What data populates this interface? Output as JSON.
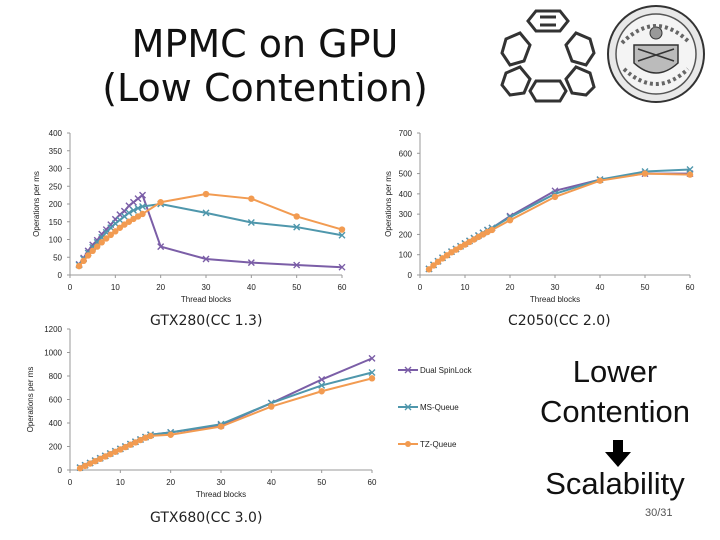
{
  "slide": {
    "title_line1": "MPMC on GPU",
    "title_line2": "(Low Contention)",
    "lower_line1": "Lower",
    "lower_line2": "Contention",
    "scalability": "Scalability",
    "page_number": "30/31"
  },
  "colors": {
    "dual_spinlock": "#7b5ea7",
    "ms_queue": "#4f97ac",
    "tz_queue": "#f29b51",
    "axis": "#999999"
  },
  "chart_data": [
    {
      "id": "gtx280",
      "type": "line",
      "caption": "GTX280(CC 1.3)",
      "xlabel": "Thread blocks",
      "ylabel": "Operations per ms",
      "xlim": [
        0,
        60
      ],
      "ylim": [
        0,
        400
      ],
      "xticks": [
        "0",
        "10",
        "20",
        "30",
        "40",
        "50",
        "60"
      ],
      "yticks": [
        "0",
        "50",
        "100",
        "150",
        "200",
        "250",
        "300",
        "350",
        "400"
      ],
      "series": [
        {
          "name": "Dual SpinLock",
          "marker": "x",
          "x": [
            2,
            3,
            4,
            5,
            6,
            7,
            8,
            9,
            10,
            11,
            12,
            13,
            14,
            15,
            16,
            20,
            30,
            40,
            50,
            60
          ],
          "y": [
            30,
            48,
            68,
            85,
            98,
            115,
            128,
            142,
            157,
            170,
            180,
            195,
            205,
            215,
            225,
            80,
            45,
            35,
            28,
            22
          ]
        },
        {
          "name": "MS-Queue",
          "marker": "x",
          "x": [
            2,
            3,
            4,
            5,
            6,
            7,
            8,
            9,
            10,
            11,
            12,
            13,
            14,
            15,
            16,
            20,
            30,
            40,
            50,
            60
          ],
          "y": [
            28,
            45,
            62,
            78,
            92,
            106,
            120,
            133,
            145,
            155,
            165,
            175,
            182,
            188,
            193,
            200,
            175,
            148,
            135,
            112
          ]
        },
        {
          "name": "TZ-Queue",
          "marker": "o",
          "x": [
            2,
            3,
            4,
            5,
            6,
            7,
            8,
            9,
            10,
            11,
            12,
            13,
            14,
            15,
            16,
            20,
            30,
            40,
            50,
            60
          ],
          "y": [
            25,
            40,
            55,
            68,
            80,
            92,
            103,
            113,
            123,
            133,
            142,
            150,
            158,
            165,
            172,
            205,
            228,
            215,
            165,
            128
          ]
        }
      ]
    },
    {
      "id": "c2050",
      "type": "line",
      "caption": "C2050(CC 2.0)",
      "xlabel": "Thread blocks",
      "ylabel": "Operations per ms",
      "xlim": [
        0,
        60
      ],
      "ylim": [
        0,
        700
      ],
      "xticks": [
        "0",
        "10",
        "20",
        "30",
        "40",
        "50",
        "60"
      ],
      "yticks": [
        "0",
        "100",
        "200",
        "300",
        "400",
        "500",
        "600",
        "700"
      ],
      "series": [
        {
          "name": "Dual SpinLock",
          "marker": "x",
          "x": [
            2,
            3,
            4,
            5,
            6,
            7,
            8,
            9,
            10,
            11,
            12,
            13,
            14,
            15,
            16,
            20,
            30,
            40,
            50,
            60
          ],
          "y": [
            30,
            50,
            68,
            85,
            100,
            115,
            128,
            142,
            155,
            168,
            182,
            195,
            208,
            222,
            232,
            290,
            415,
            470,
            500,
            500
          ]
        },
        {
          "name": "MS-Queue",
          "marker": "x",
          "x": [
            2,
            3,
            4,
            5,
            6,
            7,
            8,
            9,
            10,
            11,
            12,
            13,
            14,
            15,
            16,
            20,
            30,
            40,
            50,
            60
          ],
          "y": [
            30,
            50,
            68,
            85,
            100,
            115,
            128,
            142,
            155,
            168,
            182,
            195,
            208,
            222,
            232,
            285,
            400,
            470,
            510,
            520
          ]
        },
        {
          "name": "TZ-Queue",
          "marker": "o",
          "x": [
            2,
            3,
            4,
            5,
            6,
            7,
            8,
            9,
            10,
            11,
            12,
            13,
            14,
            15,
            16,
            20,
            30,
            40,
            50,
            60
          ],
          "y": [
            28,
            47,
            65,
            82,
            97,
            112,
            125,
            138,
            150,
            163,
            175,
            188,
            200,
            212,
            222,
            270,
            385,
            465,
            500,
            495
          ]
        }
      ]
    },
    {
      "id": "gtx680",
      "type": "line",
      "caption": "GTX680(CC 3.0)",
      "xlabel": "Thread blocks",
      "ylabel": "Operations per ms",
      "xlim": [
        0,
        60
      ],
      "ylim": [
        0,
        1200
      ],
      "xticks": [
        "0",
        "10",
        "20",
        "30",
        "40",
        "50",
        "60"
      ],
      "yticks": [
        "0",
        "200",
        "400",
        "600",
        "800",
        "1000",
        "1200"
      ],
      "legend": [
        "Dual SpinLock",
        "MS-Queue",
        "TZ-Queue"
      ],
      "series": [
        {
          "name": "Dual SpinLock",
          "marker": "x",
          "x": [
            2,
            3,
            4,
            5,
            6,
            7,
            8,
            9,
            10,
            11,
            12,
            13,
            14,
            15,
            16,
            20,
            30,
            40,
            50,
            60
          ],
          "y": [
            20,
            40,
            60,
            80,
            100,
            120,
            140,
            160,
            180,
            200,
            220,
            240,
            260,
            280,
            300,
            320,
            380,
            570,
            770,
            950
          ]
        },
        {
          "name": "MS-Queue",
          "marker": "x",
          "x": [
            2,
            3,
            4,
            5,
            6,
            7,
            8,
            9,
            10,
            11,
            12,
            13,
            14,
            15,
            16,
            20,
            30,
            40,
            50,
            60
          ],
          "y": [
            20,
            40,
            60,
            80,
            100,
            120,
            140,
            160,
            180,
            200,
            220,
            240,
            260,
            280,
            300,
            320,
            390,
            570,
            720,
            830
          ]
        },
        {
          "name": "TZ-Queue",
          "marker": "o",
          "x": [
            2,
            3,
            4,
            5,
            6,
            7,
            8,
            9,
            10,
            11,
            12,
            13,
            14,
            15,
            16,
            20,
            30,
            40,
            50,
            60
          ],
          "y": [
            15,
            35,
            55,
            75,
            95,
            115,
            135,
            155,
            175,
            195,
            215,
            235,
            255,
            275,
            290,
            300,
            370,
            540,
            670,
            780
          ]
        }
      ]
    }
  ]
}
